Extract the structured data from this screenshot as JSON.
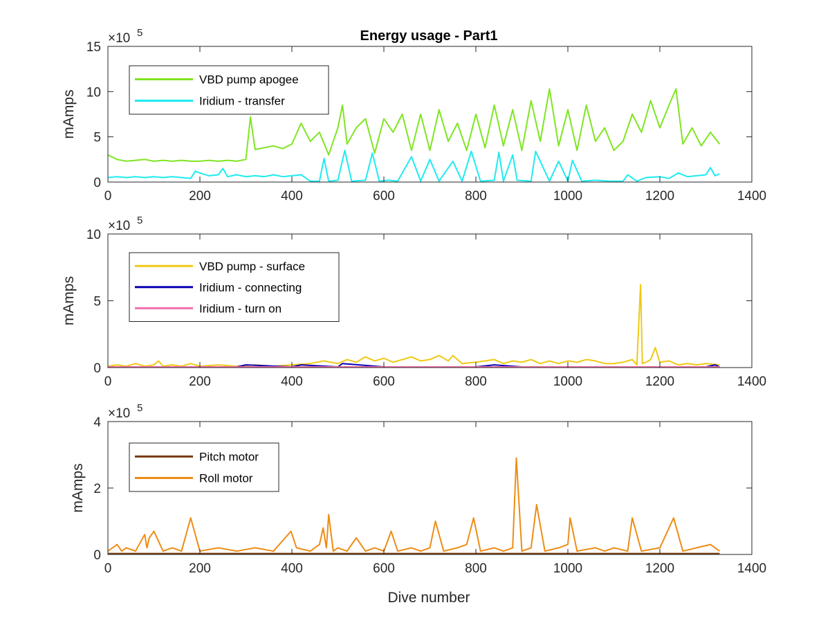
{
  "chart_data": [
    {
      "type": "line",
      "title": "Energy usage - Part1",
      "xlabel": "",
      "ylabel": "mAmps",
      "exponent_label": "×10",
      "exponent_power": "5",
      "xlim": [
        0,
        1400
      ],
      "ylim": [
        0,
        15
      ],
      "xticks": [
        "0",
        "200",
        "400",
        "600",
        "800",
        "1000",
        "1200",
        "1400"
      ],
      "yticks": [
        "0",
        "5",
        "10",
        "15"
      ],
      "legend_position": "top-left",
      "series": [
        {
          "name": "VBD pump apogee",
          "color": "#7FE521",
          "x": [
            0,
            20,
            40,
            60,
            80,
            100,
            120,
            140,
            160,
            180,
            200,
            220,
            240,
            260,
            280,
            300,
            310,
            320,
            340,
            360,
            380,
            400,
            420,
            440,
            460,
            480,
            500,
            510,
            520,
            540,
            560,
            580,
            600,
            620,
            640,
            660,
            680,
            700,
            720,
            740,
            760,
            780,
            800,
            820,
            840,
            860,
            880,
            900,
            920,
            940,
            960,
            980,
            1000,
            1020,
            1040,
            1060,
            1080,
            1100,
            1120,
            1140,
            1160,
            1180,
            1200,
            1220,
            1235,
            1250,
            1270,
            1290,
            1310,
            1330
          ],
          "y": [
            3.0,
            2.5,
            2.3,
            2.4,
            2.5,
            2.3,
            2.4,
            2.3,
            2.4,
            2.3,
            2.3,
            2.4,
            2.3,
            2.4,
            2.3,
            2.5,
            7.2,
            3.6,
            3.8,
            4.0,
            3.7,
            4.2,
            6.5,
            4.5,
            5.5,
            3.0,
            6.0,
            8.5,
            4.2,
            6.0,
            7.0,
            3.2,
            7.0,
            5.5,
            7.5,
            3.5,
            7.5,
            3.5,
            8.0,
            4.5,
            6.5,
            3.5,
            7.5,
            3.8,
            8.5,
            4.0,
            8.0,
            3.5,
            9.0,
            4.5,
            10.3,
            4.0,
            8.0,
            3.5,
            8.5,
            4.5,
            6.0,
            3.5,
            4.5,
            7.5,
            5.5,
            9.0,
            6.0,
            8.5,
            10.3,
            4.2,
            6.0,
            4.0,
            5.5,
            4.2
          ]
        },
        {
          "name": "Iridium - transfer",
          "color": "#1EEBF0",
          "x": [
            0,
            20,
            40,
            60,
            80,
            100,
            120,
            140,
            160,
            180,
            190,
            200,
            220,
            240,
            250,
            260,
            280,
            300,
            320,
            340,
            360,
            380,
            400,
            420,
            440,
            460,
            470,
            480,
            500,
            515,
            530,
            560,
            575,
            590,
            610,
            630,
            660,
            680,
            700,
            720,
            750,
            770,
            790,
            810,
            840,
            850,
            860,
            880,
            890,
            920,
            930,
            960,
            980,
            1000,
            1010,
            1030,
            1060,
            1090,
            1120,
            1130,
            1150,
            1170,
            1200,
            1220,
            1240,
            1260,
            1280,
            1300,
            1310,
            1320,
            1330
          ],
          "y": [
            0.5,
            0.6,
            0.5,
            0.6,
            0.5,
            0.6,
            0.5,
            0.6,
            0.5,
            0.4,
            1.2,
            1.0,
            0.7,
            0.8,
            1.5,
            0.6,
            0.8,
            0.6,
            0.7,
            0.6,
            0.8,
            0.6,
            0.7,
            0.8,
            0.1,
            0.1,
            2.6,
            0.1,
            0.2,
            3.5,
            0.1,
            0.2,
            3.2,
            0.1,
            0.2,
            0.1,
            2.8,
            0.1,
            2.5,
            0.1,
            2.3,
            0.1,
            3.4,
            0.1,
            0.2,
            3.3,
            0.1,
            3.0,
            0.2,
            0.1,
            3.4,
            0.1,
            2.3,
            0.1,
            2.4,
            0.1,
            0.2,
            0.1,
            0.1,
            0.8,
            0.1,
            0.5,
            0.6,
            0.4,
            1.0,
            0.6,
            0.7,
            0.8,
            1.6,
            0.7,
            0.9
          ]
        }
      ]
    },
    {
      "type": "line",
      "title": "",
      "xlabel": "",
      "ylabel": "mAmps",
      "exponent_label": "×10",
      "exponent_power": "5",
      "xlim": [
        0,
        1400
      ],
      "ylim": [
        0,
        10
      ],
      "xticks": [
        "0",
        "200",
        "400",
        "600",
        "800",
        "1000",
        "1200",
        "1400"
      ],
      "yticks": [
        "0",
        "5",
        "10"
      ],
      "legend_position": "top-left",
      "series": [
        {
          "name": "VBD pump - surface",
          "color": "#F0C814",
          "x": [
            0,
            20,
            40,
            60,
            80,
            100,
            110,
            120,
            140,
            160,
            180,
            200,
            240,
            280,
            320,
            360,
            400,
            440,
            470,
            500,
            520,
            540,
            560,
            580,
            600,
            620,
            640,
            660,
            680,
            700,
            720,
            740,
            750,
            770,
            800,
            820,
            840,
            860,
            880,
            900,
            920,
            940,
            960,
            980,
            1000,
            1020,
            1040,
            1060,
            1080,
            1100,
            1120,
            1140,
            1150,
            1158,
            1162,
            1170,
            1180,
            1190,
            1200,
            1220,
            1240,
            1260,
            1280,
            1300,
            1330
          ],
          "y": [
            0.1,
            0.2,
            0.1,
            0.3,
            0.1,
            0.2,
            0.5,
            0.1,
            0.2,
            0.1,
            0.3,
            0.1,
            0.2,
            0.1,
            0.2,
            0.1,
            0.2,
            0.3,
            0.5,
            0.3,
            0.6,
            0.4,
            0.8,
            0.5,
            0.7,
            0.4,
            0.6,
            0.8,
            0.5,
            0.6,
            0.9,
            0.5,
            0.9,
            0.3,
            0.4,
            0.5,
            0.6,
            0.3,
            0.5,
            0.4,
            0.6,
            0.3,
            0.5,
            0.3,
            0.5,
            0.4,
            0.6,
            0.5,
            0.3,
            0.3,
            0.4,
            0.6,
            0.2,
            6.2,
            0.3,
            0.4,
            0.6,
            1.5,
            0.4,
            0.5,
            0.2,
            0.3,
            0.2,
            0.3,
            0.2
          ]
        },
        {
          "name": "Iridium - connecting",
          "color": "#0A00B4",
          "x": [
            0,
            100,
            200,
            280,
            300,
            400,
            420,
            500,
            510,
            600,
            700,
            800,
            840,
            900,
            1000,
            1100,
            1200,
            1300,
            1320,
            1330
          ],
          "y": [
            0.05,
            0.05,
            0.05,
            0.05,
            0.2,
            0.05,
            0.2,
            0.05,
            0.3,
            0.05,
            0.05,
            0.05,
            0.2,
            0.05,
            0.05,
            0.05,
            0.05,
            0.05,
            0.2,
            0.05
          ]
        },
        {
          "name": "Iridium - turn on",
          "color": "#F06EAA",
          "x": [
            0,
            200,
            400,
            600,
            800,
            1000,
            1200,
            1330
          ],
          "y": [
            0.05,
            0.05,
            0.05,
            0.05,
            0.05,
            0.05,
            0.05,
            0.05
          ]
        }
      ]
    },
    {
      "type": "line",
      "title": "",
      "xlabel": "Dive number",
      "ylabel": "mAmps",
      "exponent_label": "×10",
      "exponent_power": "5",
      "xlim": [
        0,
        1400
      ],
      "ylim": [
        0,
        4
      ],
      "xticks": [
        "0",
        "200",
        "400",
        "600",
        "800",
        "1000",
        "1200",
        "1400"
      ],
      "yticks": [
        "0",
        "2",
        "4"
      ],
      "legend_position": "top-left",
      "series": [
        {
          "name": "Pitch motor",
          "color": "#7A3C0F",
          "x": [
            0,
            200,
            400,
            600,
            800,
            1000,
            1200,
            1330
          ],
          "y": [
            0.03,
            0.03,
            0.03,
            0.03,
            0.03,
            0.03,
            0.03,
            0.03
          ]
        },
        {
          "name": "Roll motor",
          "color": "#EE8C14",
          "x": [
            0,
            20,
            30,
            40,
            60,
            80,
            85,
            90,
            100,
            120,
            140,
            160,
            180,
            200,
            240,
            280,
            320,
            360,
            398,
            410,
            440,
            460,
            468,
            475,
            480,
            490,
            500,
            520,
            540,
            560,
            580,
            600,
            616,
            630,
            660,
            680,
            700,
            712,
            730,
            760,
            780,
            795,
            810,
            840,
            860,
            880,
            888,
            900,
            920,
            932,
            950,
            980,
            1000,
            1005,
            1020,
            1060,
            1080,
            1100,
            1130,
            1140,
            1160,
            1200,
            1230,
            1250,
            1280,
            1310,
            1330
          ],
          "y": [
            0.1,
            0.3,
            0.1,
            0.2,
            0.1,
            0.6,
            0.2,
            0.5,
            0.7,
            0.1,
            0.2,
            0.1,
            1.1,
            0.1,
            0.2,
            0.1,
            0.2,
            0.1,
            0.7,
            0.2,
            0.1,
            0.3,
            0.8,
            0.2,
            1.2,
            0.1,
            0.2,
            0.1,
            0.5,
            0.1,
            0.2,
            0.1,
            0.7,
            0.1,
            0.2,
            0.1,
            0.2,
            1.0,
            0.1,
            0.2,
            0.3,
            1.1,
            0.1,
            0.2,
            0.1,
            0.2,
            2.9,
            0.1,
            0.2,
            1.5,
            0.1,
            0.2,
            0.3,
            1.1,
            0.1,
            0.2,
            0.1,
            0.2,
            0.1,
            1.1,
            0.1,
            0.2,
            1.1,
            0.1,
            0.2,
            0.3,
            0.1
          ]
        }
      ]
    }
  ]
}
